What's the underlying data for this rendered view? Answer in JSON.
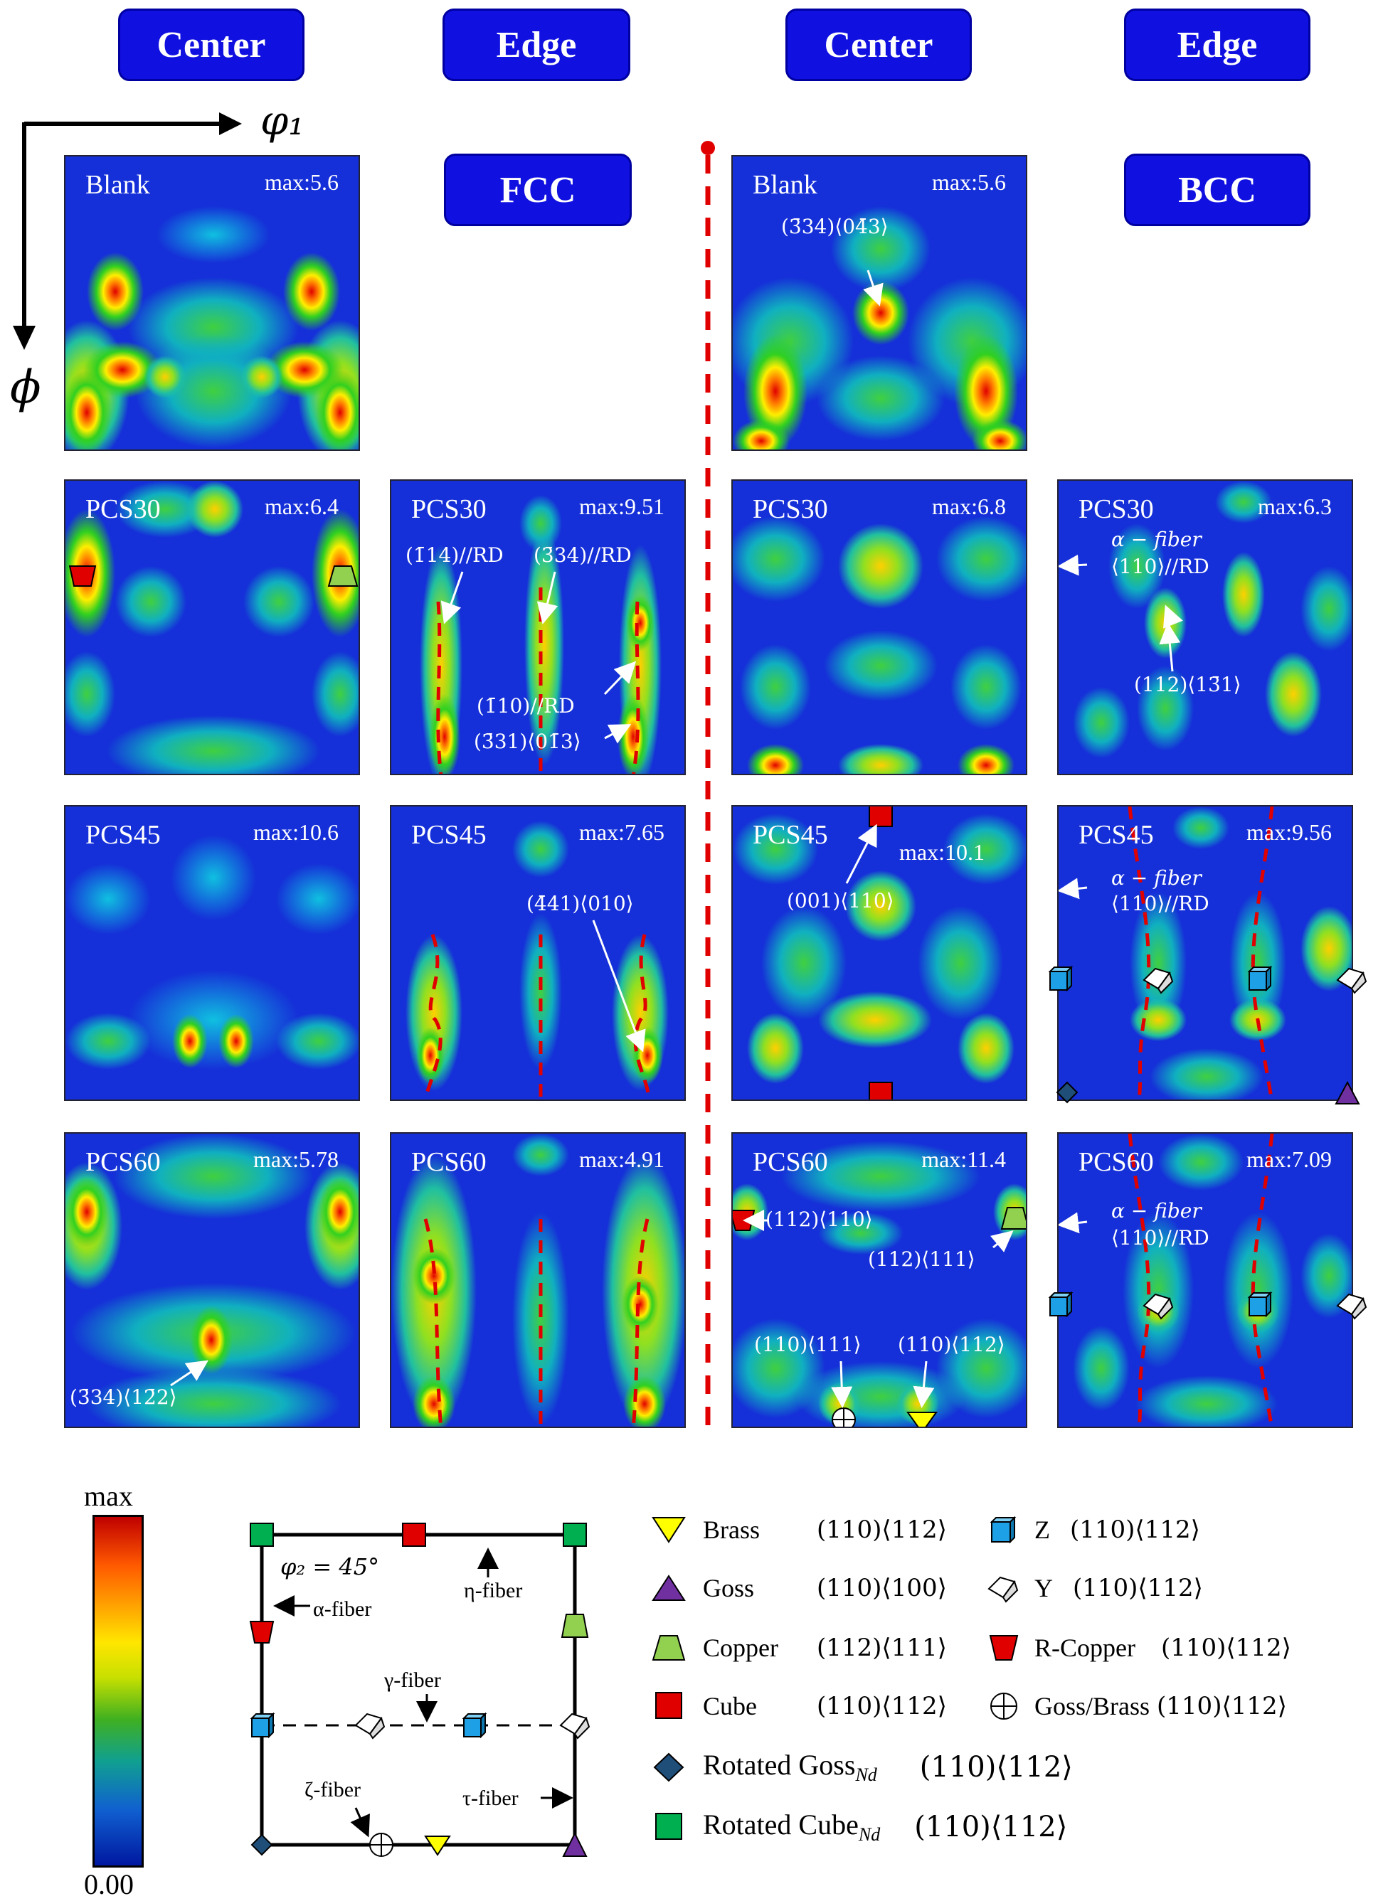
{
  "headers": {
    "center_left": "Center",
    "edge_left": "Edge",
    "center_right": "Center",
    "edge_right": "Edge",
    "fcc": "FCC",
    "bcc": "BCC"
  },
  "axes": {
    "phi1": "φ₁",
    "phi": "ϕ"
  },
  "panels": {
    "fcc_center_blank": {
      "name": "Blank",
      "max": "max:5.6"
    },
    "fcc_center_pcs30": {
      "name": "PCS30",
      "max": "max:6.4"
    },
    "fcc_center_pcs45": {
      "name": "PCS45",
      "max": "max:10.6"
    },
    "fcc_center_pcs60": {
      "name": "PCS60",
      "max": "max:5.78"
    },
    "fcc_edge_pcs30": {
      "name": "PCS30",
      "max": "max:9.51"
    },
    "fcc_edge_pcs45": {
      "name": "PCS45",
      "max": "max:7.65"
    },
    "fcc_edge_pcs60": {
      "name": "PCS60",
      "max": "max:4.91"
    },
    "bcc_center_blank": {
      "name": "Blank",
      "max": "max:5.6"
    },
    "bcc_center_pcs30": {
      "name": "PCS30",
      "max": "max:6.8"
    },
    "bcc_center_pcs45": {
      "name": "PCS45",
      "max": "max:10.1"
    },
    "bcc_center_pcs60": {
      "name": "PCS60",
      "max": "max:11.4"
    },
    "bcc_edge_pcs30": {
      "name": "PCS30",
      "max": "max:6.3"
    },
    "bcc_edge_pcs45": {
      "name": "PCS45",
      "max": "max:9.56"
    },
    "bcc_edge_pcs60": {
      "name": "PCS60",
      "max": "max:7.09"
    }
  },
  "annotations": {
    "blank_bcc": "(3̄34)⟨04̄3⟩",
    "pcs60_fcc_center": "(3̄34)⟨12̄2⟩",
    "pcs30_edge_a": "(1̄14)//RD",
    "pcs30_edge_b": "(3̄34)//RD",
    "pcs30_edge_c": "(1̄10)//RD",
    "pcs30_edge_d": "(3̄31)⟨01̄3⟩",
    "pcs45_edge": "(4̄41)⟨010⟩",
    "bcc_pcs45_center": "(001)⟨110⟩",
    "bcc_pcs60_a": "(112)⟨110⟩",
    "bcc_pcs60_b": "(112)⟨111⟩",
    "bcc_pcs60_c": "(110)⟨111⟩",
    "bcc_pcs60_d": "(110)⟨112⟩",
    "alpha_fiber": "α − fiber",
    "alpha_rd": "⟨110⟩//RD",
    "bcc_pcs30_idx": "(112)⟨13̄1⟩"
  },
  "colorbar": {
    "top": "max",
    "bottom": "0.00"
  },
  "schematic": {
    "phi2": "φ₂ = 45°",
    "alpha": "α-fiber",
    "eta": "η-fiber",
    "gamma": "γ-fiber",
    "zeta": "ζ-fiber",
    "tau": "τ-fiber"
  },
  "legend": [
    {
      "name": "Brass",
      "index": "(110)⟨112⟩",
      "icon": "brass-triangle",
      "color": "#ffff00"
    },
    {
      "name": "Goss",
      "index": "(110)⟨100⟩",
      "icon": "goss-triangle",
      "color": "#7030a0"
    },
    {
      "name": "Copper",
      "index": "(112)⟨111⟩",
      "icon": "copper-trapezoid",
      "color": "#92d050"
    },
    {
      "name": "Cube",
      "index": "(110)⟨112⟩",
      "icon": "cube-square",
      "color": "#ff0000"
    },
    {
      "name": "Rotated Goss",
      "sub": "Nd",
      "index": "(110)⟨112⟩",
      "icon": "rotated-goss-diamond",
      "color": "#1f4e79"
    },
    {
      "name": "Rotated Cube",
      "sub": "Nd",
      "index": "(110)⟨112⟩",
      "icon": "rotated-cube-square",
      "color": "#00b050"
    },
    {
      "name": "Z",
      "index": "(110)⟨112⟩",
      "icon": "z-cube",
      "color": "#1ea0e6"
    },
    {
      "name": "Y",
      "index": "(110)⟨112⟩",
      "icon": "y-cube",
      "color": "#ffffff"
    },
    {
      "name": "R-Copper",
      "index": "(110)⟨112⟩",
      "icon": "r-copper-trapezoid",
      "color": "#ff0000"
    },
    {
      "name": "Goss/Brass",
      "index": "(110)⟨112⟩",
      "icon": "goss-brass-circle",
      "color": "#ffffff"
    }
  ]
}
